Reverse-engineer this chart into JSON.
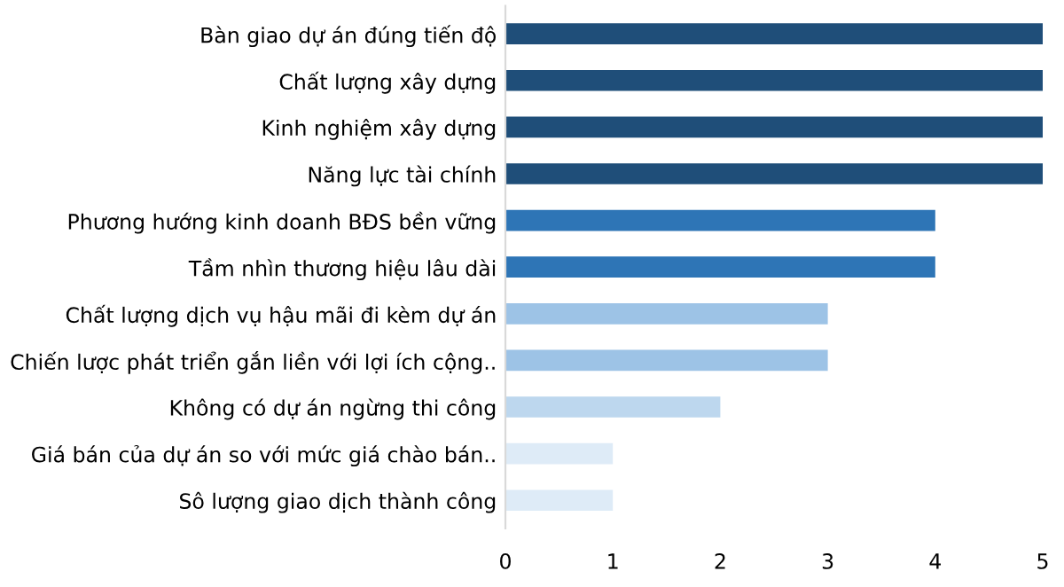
{
  "chart_data": {
    "type": "bar",
    "orientation": "horizontal",
    "categories": [
      "Bàn giao dự án đúng tiến độ",
      "Chất lượng xây dựng",
      "Kinh nghiệm xây dựng",
      "Năng lực tài chính",
      "Phương hướng kinh doanh BĐS bền vững",
      "Tầm nhìn thương hiệu lâu dài",
      "Chất lượng dịch vụ hậu mãi đi kèm dự án",
      "Chiến lược phát triển gắn liền với lợi ích cộng..",
      "Không có dự án ngừng thi công",
      "Giá bán của dự án so với mức giá chào bán..",
      "Sô lượng giao dịch thành công"
    ],
    "values": [
      5,
      5,
      5,
      5,
      4,
      4,
      3,
      3,
      2,
      1,
      1
    ],
    "colors": [
      "#1f4e79",
      "#1f4e79",
      "#1f4e79",
      "#1f4e79",
      "#2e75b6",
      "#2e75b6",
      "#9dc3e6",
      "#9dc3e6",
      "#bdd7ee",
      "#deebf7",
      "#deebf7"
    ],
    "xlim": [
      0,
      5
    ],
    "xticks": [
      0,
      1,
      2,
      3,
      4,
      5
    ],
    "grid": false,
    "legend": false
  }
}
